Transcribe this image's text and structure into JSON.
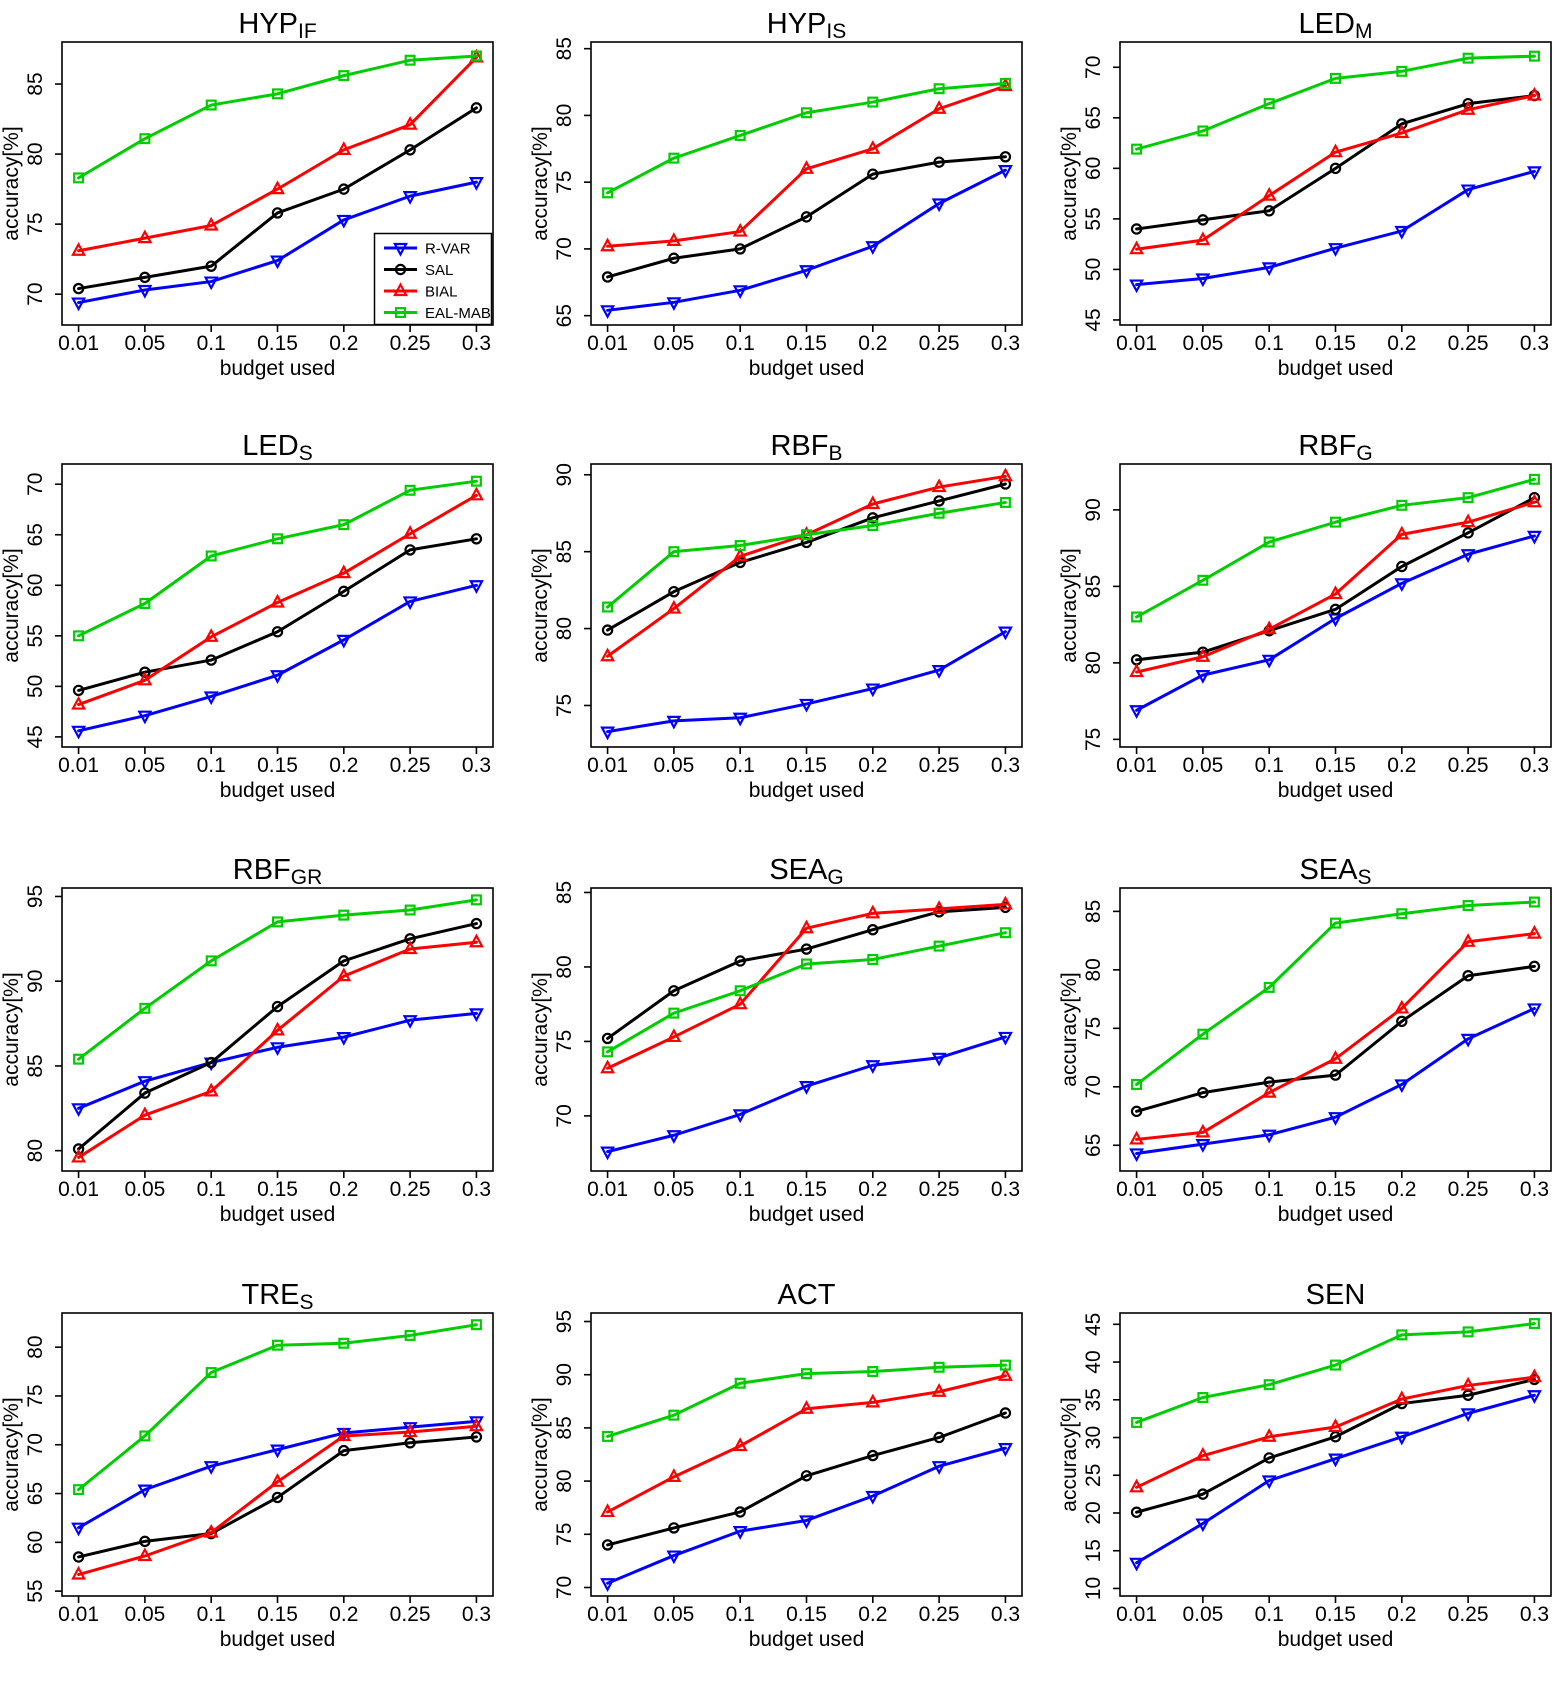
{
  "figure": {
    "x_label": "budget used",
    "y_label": "accuracy[%]",
    "x_values": [
      0.01,
      0.05,
      0.1,
      0.15,
      0.2,
      0.25,
      0.3
    ],
    "x_tick_labels": [
      "0.01",
      "0.05",
      "0.1",
      "0.15",
      "0.2",
      "0.25",
      "0.3"
    ]
  },
  "legend": {
    "position": "bottom-right-inside-first-chart",
    "entries": [
      {
        "label": "R-VAR",
        "color": "#0000ff",
        "marker": "triangle-down"
      },
      {
        "label": "SAL",
        "color": "#000000",
        "marker": "circle"
      },
      {
        "label": "BIAL",
        "color": "#ff0000",
        "marker": "triangle-up"
      },
      {
        "label": "EAL-MAB",
        "color": "#00cd00",
        "marker": "square"
      }
    ]
  },
  "chart_data": [
    {
      "type": "line",
      "title_main": "HYP",
      "title_sub": "IF",
      "legend": true,
      "ylim": [
        67.8,
        88.0
      ],
      "yticks": [
        70,
        75,
        80,
        85
      ],
      "grid": false,
      "series": [
        {
          "name": "R-VAR",
          "values": [
            69.4,
            70.3,
            70.9,
            72.4,
            75.3,
            77.0,
            78.0
          ]
        },
        {
          "name": "SAL",
          "values": [
            70.4,
            71.2,
            72.0,
            75.8,
            77.5,
            80.3,
            83.3
          ]
        },
        {
          "name": "BIAL",
          "values": [
            73.1,
            74.0,
            74.9,
            77.5,
            80.3,
            82.1,
            86.9
          ]
        },
        {
          "name": "EAL-MAB",
          "values": [
            78.3,
            81.1,
            83.5,
            84.3,
            85.6,
            86.7,
            87.0
          ]
        }
      ]
    },
    {
      "type": "line",
      "title_main": "HYP",
      "title_sub": "IS",
      "legend": false,
      "ylim": [
        64.3,
        85.5
      ],
      "yticks": [
        65,
        70,
        75,
        80,
        85
      ],
      "grid": false,
      "series": [
        {
          "name": "R-VAR",
          "values": [
            65.4,
            66.0,
            66.9,
            68.4,
            70.2,
            73.4,
            75.9
          ]
        },
        {
          "name": "SAL",
          "values": [
            67.9,
            69.3,
            70.0,
            72.4,
            75.6,
            76.5,
            76.9
          ]
        },
        {
          "name": "BIAL",
          "values": [
            70.2,
            70.6,
            71.3,
            76.0,
            77.5,
            80.5,
            82.2
          ]
        },
        {
          "name": "EAL-MAB",
          "values": [
            74.2,
            76.8,
            78.5,
            80.2,
            81.0,
            82.0,
            82.4
          ]
        }
      ]
    },
    {
      "type": "line",
      "title_main": "LED",
      "title_sub": "M",
      "legend": false,
      "ylim": [
        44.5,
        72.5
      ],
      "yticks": [
        45,
        50,
        55,
        60,
        65,
        70
      ],
      "grid": false,
      "series": [
        {
          "name": "R-VAR",
          "values": [
            48.5,
            49.1,
            50.2,
            52.1,
            53.8,
            57.9,
            59.7
          ]
        },
        {
          "name": "SAL",
          "values": [
            54.0,
            54.9,
            55.8,
            60.0,
            64.4,
            66.4,
            67.2
          ]
        },
        {
          "name": "BIAL",
          "values": [
            52.0,
            52.9,
            57.3,
            61.6,
            63.5,
            65.8,
            67.2
          ]
        },
        {
          "name": "EAL-MAB",
          "values": [
            61.9,
            63.7,
            66.4,
            68.9,
            69.6,
            70.9,
            71.1
          ]
        }
      ]
    },
    {
      "type": "line",
      "title_main": "LED",
      "title_sub": "S",
      "legend": false,
      "ylim": [
        44.0,
        72.0
      ],
      "yticks": [
        45,
        50,
        55,
        60,
        65,
        70
      ],
      "grid": false,
      "series": [
        {
          "name": "R-VAR",
          "values": [
            45.6,
            47.1,
            49.0,
            51.1,
            54.6,
            58.4,
            60.0
          ]
        },
        {
          "name": "SAL",
          "values": [
            49.6,
            51.4,
            52.6,
            55.4,
            59.4,
            63.5,
            64.6
          ]
        },
        {
          "name": "BIAL",
          "values": [
            48.2,
            50.6,
            54.9,
            58.3,
            61.2,
            65.1,
            68.9
          ]
        },
        {
          "name": "EAL-MAB",
          "values": [
            55.0,
            58.2,
            62.9,
            64.6,
            66.0,
            69.4,
            70.3
          ]
        }
      ]
    },
    {
      "type": "line",
      "title_main": "RBF",
      "title_sub": "B",
      "legend": false,
      "ylim": [
        72.3,
        90.7
      ],
      "yticks": [
        75,
        80,
        85,
        90
      ],
      "grid": false,
      "series": [
        {
          "name": "R-VAR",
          "values": [
            73.3,
            74.0,
            74.2,
            75.1,
            76.1,
            77.3,
            79.8
          ]
        },
        {
          "name": "SAL",
          "values": [
            79.9,
            82.4,
            84.3,
            85.6,
            87.2,
            88.3,
            89.4
          ]
        },
        {
          "name": "BIAL",
          "values": [
            78.2,
            81.3,
            84.7,
            86.1,
            88.1,
            89.2,
            89.9
          ]
        },
        {
          "name": "EAL-MAB",
          "values": [
            81.4,
            85.0,
            85.4,
            86.1,
            86.7,
            87.5,
            88.2
          ]
        }
      ]
    },
    {
      "type": "line",
      "title_main": "RBF",
      "title_sub": "G",
      "legend": false,
      "ylim": [
        74.5,
        93.0
      ],
      "yticks": [
        75,
        80,
        85,
        90
      ],
      "grid": false,
      "series": [
        {
          "name": "R-VAR",
          "values": [
            76.9,
            79.2,
            80.2,
            82.9,
            85.2,
            87.1,
            88.3
          ]
        },
        {
          "name": "SAL",
          "values": [
            80.2,
            80.7,
            82.1,
            83.5,
            86.3,
            88.5,
            90.8
          ]
        },
        {
          "name": "BIAL",
          "values": [
            79.4,
            80.4,
            82.2,
            84.5,
            88.4,
            89.2,
            90.5
          ]
        },
        {
          "name": "EAL-MAB",
          "values": [
            83.0,
            85.4,
            87.9,
            89.2,
            90.3,
            90.8,
            92.0
          ]
        }
      ]
    },
    {
      "type": "line",
      "title_main": "RBF",
      "title_sub": "GR",
      "legend": false,
      "ylim": [
        78.8,
        95.5
      ],
      "yticks": [
        80,
        85,
        90,
        95
      ],
      "grid": false,
      "series": [
        {
          "name": "R-VAR",
          "values": [
            82.5,
            84.1,
            85.2,
            86.1,
            86.7,
            87.7,
            88.1
          ]
        },
        {
          "name": "SAL",
          "values": [
            80.1,
            83.4,
            85.2,
            88.5,
            91.2,
            92.5,
            93.4
          ]
        },
        {
          "name": "BIAL",
          "values": [
            79.6,
            82.1,
            83.5,
            87.1,
            90.3,
            91.9,
            92.3
          ]
        },
        {
          "name": "EAL-MAB",
          "values": [
            85.4,
            88.4,
            91.2,
            93.5,
            93.9,
            94.2,
            94.8
          ]
        }
      ]
    },
    {
      "type": "line",
      "title_main": "SEA",
      "title_sub": "G",
      "legend": false,
      "ylim": [
        66.3,
        85.3
      ],
      "yticks": [
        70,
        75,
        80,
        85
      ],
      "grid": false,
      "series": [
        {
          "name": "R-VAR",
          "values": [
            67.6,
            68.7,
            70.1,
            72.0,
            73.4,
            73.9,
            75.3
          ]
        },
        {
          "name": "SAL",
          "values": [
            75.2,
            78.4,
            80.4,
            81.2,
            82.5,
            83.7,
            84.0
          ]
        },
        {
          "name": "BIAL",
          "values": [
            73.2,
            75.3,
            77.5,
            82.6,
            83.6,
            83.9,
            84.2
          ]
        },
        {
          "name": "EAL-MAB",
          "values": [
            74.3,
            76.9,
            78.4,
            80.2,
            80.5,
            81.4,
            82.3
          ]
        }
      ]
    },
    {
      "type": "line",
      "title_main": "SEA",
      "title_sub": "S",
      "legend": false,
      "ylim": [
        62.8,
        87.0
      ],
      "yticks": [
        65,
        70,
        75,
        80,
        85
      ],
      "grid": false,
      "series": [
        {
          "name": "R-VAR",
          "values": [
            64.3,
            65.1,
            65.9,
            67.4,
            70.2,
            74.1,
            76.7
          ]
        },
        {
          "name": "SAL",
          "values": [
            67.9,
            69.5,
            70.4,
            71.0,
            75.6,
            79.5,
            80.3
          ]
        },
        {
          "name": "BIAL",
          "values": [
            65.5,
            66.1,
            69.5,
            72.4,
            76.7,
            82.4,
            83.1
          ]
        },
        {
          "name": "EAL-MAB",
          "values": [
            70.2,
            74.5,
            78.5,
            84.0,
            84.8,
            85.5,
            85.8
          ]
        }
      ]
    },
    {
      "type": "line",
      "title_main": "TRE",
      "title_sub": "S",
      "legend": false,
      "ylim": [
        54.5,
        83.5
      ],
      "yticks": [
        55,
        60,
        65,
        70,
        75,
        80
      ],
      "grid": false,
      "series": [
        {
          "name": "R-VAR",
          "values": [
            61.5,
            65.4,
            67.8,
            69.5,
            71.2,
            71.8,
            72.4
          ]
        },
        {
          "name": "SAL",
          "values": [
            58.5,
            60.1,
            60.9,
            64.6,
            69.4,
            70.2,
            70.8
          ]
        },
        {
          "name": "BIAL",
          "values": [
            56.7,
            58.6,
            61.0,
            66.2,
            70.9,
            71.3,
            71.9
          ]
        },
        {
          "name": "EAL-MAB",
          "values": [
            65.4,
            70.9,
            77.4,
            80.2,
            80.4,
            81.2,
            82.3
          ]
        }
      ]
    },
    {
      "type": "line",
      "title_main": "ACT",
      "title_sub": "",
      "legend": false,
      "ylim": [
        69.2,
        95.8
      ],
      "yticks": [
        70,
        75,
        80,
        85,
        90,
        95
      ],
      "grid": false,
      "series": [
        {
          "name": "R-VAR",
          "values": [
            70.4,
            73.0,
            75.3,
            76.3,
            78.6,
            81.4,
            83.1
          ]
        },
        {
          "name": "SAL",
          "values": [
            74.0,
            75.6,
            77.1,
            80.5,
            82.4,
            84.1,
            86.4
          ]
        },
        {
          "name": "BIAL",
          "values": [
            77.1,
            80.4,
            83.3,
            86.8,
            87.4,
            88.4,
            89.9
          ]
        },
        {
          "name": "EAL-MAB",
          "values": [
            84.2,
            86.2,
            89.2,
            90.1,
            90.3,
            90.7,
            90.9
          ]
        }
      ]
    },
    {
      "type": "line",
      "title_main": "SEN",
      "title_sub": "",
      "legend": false,
      "ylim": [
        9.0,
        46.5
      ],
      "yticks": [
        10,
        15,
        20,
        25,
        30,
        35,
        40,
        45
      ],
      "grid": false,
      "series": [
        {
          "name": "R-VAR",
          "values": [
            13.4,
            18.6,
            24.3,
            27.2,
            30.1,
            33.2,
            35.6
          ]
        },
        {
          "name": "SAL",
          "values": [
            20.1,
            22.5,
            27.3,
            30.1,
            34.5,
            35.6,
            37.7
          ]
        },
        {
          "name": "BIAL",
          "values": [
            23.4,
            27.6,
            30.1,
            31.4,
            35.1,
            36.9,
            38.0
          ]
        },
        {
          "name": "EAL-MAB",
          "values": [
            32.0,
            35.3,
            37.0,
            39.6,
            43.6,
            44.0,
            45.1
          ]
        }
      ]
    }
  ]
}
